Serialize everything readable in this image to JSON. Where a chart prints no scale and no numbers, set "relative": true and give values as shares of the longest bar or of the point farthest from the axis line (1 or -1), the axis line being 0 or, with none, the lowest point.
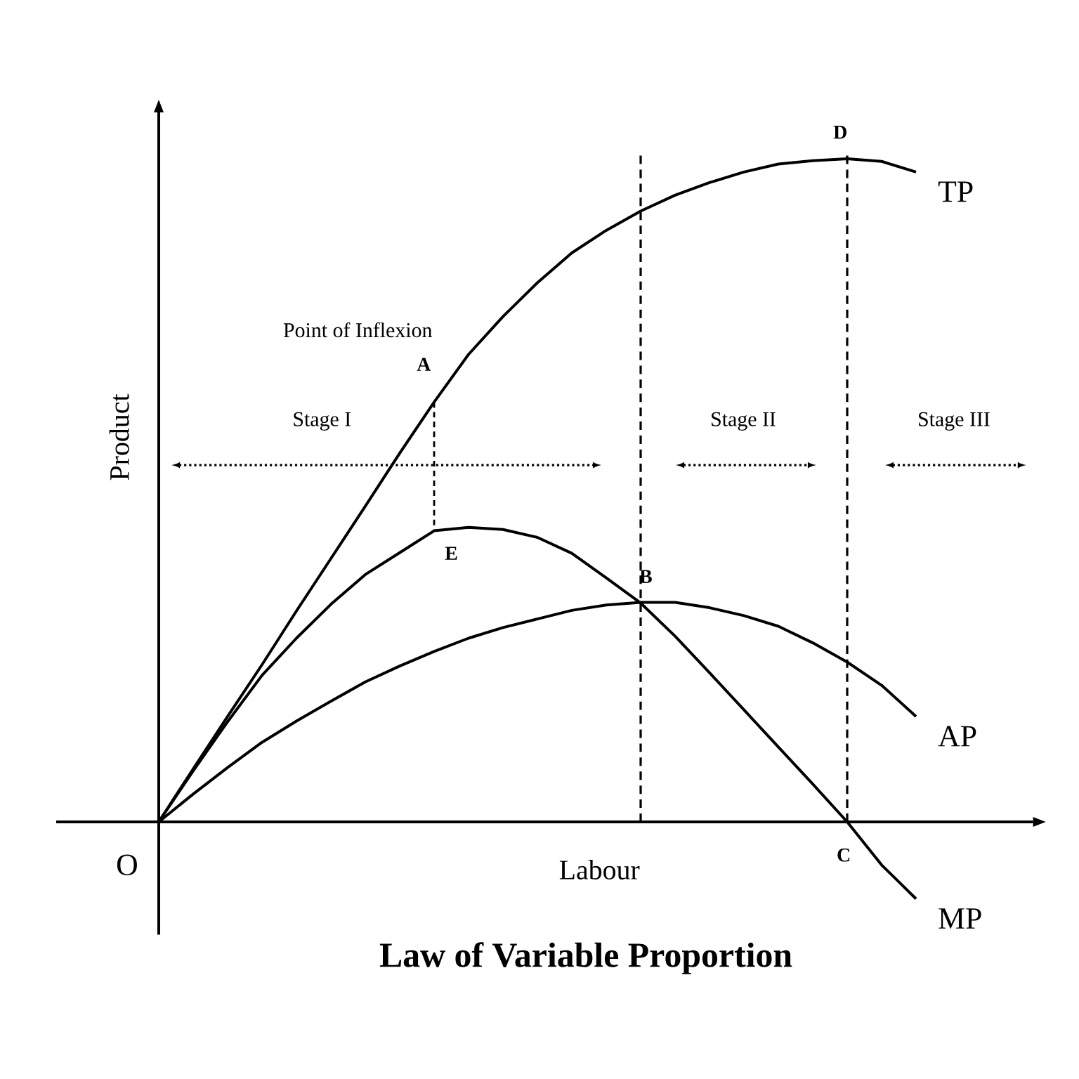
{
  "chart_data": {
    "type": "line",
    "title": "Law of Variable Proportion",
    "xlabel": "Labour",
    "ylabel": "Product",
    "relative": true,
    "marker": "none",
    "line_style": "solid",
    "categories": [
      null,
      null,
      null,
      null,
      null,
      null,
      null,
      null,
      null,
      null,
      null,
      null,
      null,
      null,
      null,
      null,
      null,
      null,
      null,
      null,
      null,
      null,
      null
    ],
    "series": [
      {
        "name": "TP",
        "color": "#000000",
        "values": [
          0,
          0.08,
          0.159,
          0.237,
          0.318,
          0.397,
          0.476,
          0.556,
          0.633,
          0.705,
          0.762,
          0.813,
          0.858,
          0.892,
          0.921,
          0.945,
          0.964,
          0.98,
          0.992,
          0.997,
          1.0,
          0.996,
          0.98
        ]
      },
      {
        "name": "AP",
        "color": "#000000",
        "values": [
          0,
          0.042,
          0.082,
          0.12,
          0.152,
          0.182,
          0.211,
          0.235,
          0.257,
          0.277,
          0.293,
          0.306,
          0.319,
          0.327,
          0.331,
          0.331,
          0.323,
          0.311,
          0.295,
          0.27,
          0.241,
          0.206,
          0.159
        ]
      },
      {
        "name": "MP",
        "color": "#000000",
        "values": [
          0,
          0.077,
          0.151,
          0.221,
          0.277,
          0.328,
          0.373,
          0.406,
          0.439,
          0.444,
          0.441,
          0.429,
          0.405,
          0.368,
          0.33,
          0.28,
          0.225,
          0.169,
          0.113,
          0.057,
          0,
          -0.065,
          -0.116
        ]
      }
    ],
    "annotations": [
      "Point of Inflexion",
      "Stage I",
      "Stage II",
      "Stage III",
      "O",
      "A",
      "B",
      "C",
      "D",
      "E"
    ]
  }
}
